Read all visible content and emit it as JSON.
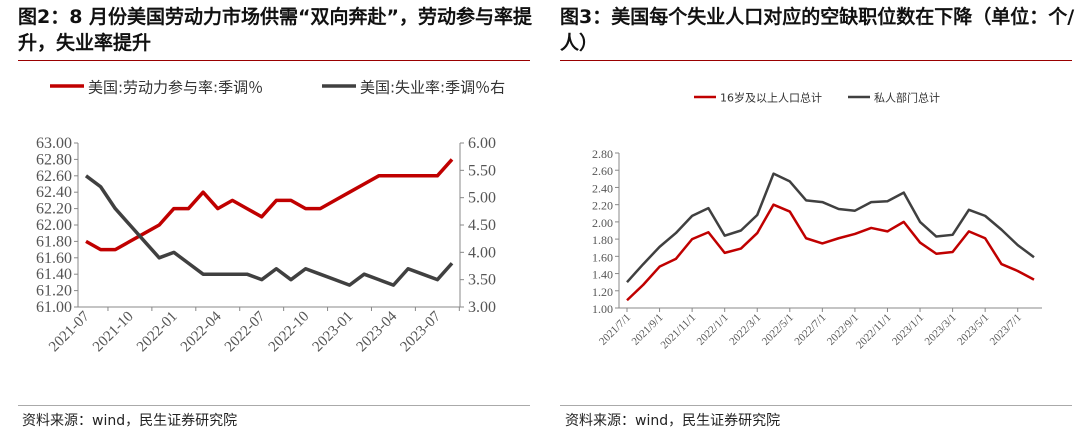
{
  "left": {
    "title": "图2：8 月份美国劳动力市场供需“双向奔赴”，劳动参与率提升，失业率提升",
    "source": "资料来源：wind，民生证券研究院"
  },
  "right": {
    "title": "图3：美国每个失业人口对应的空缺职位数在下降（单位：个/人）",
    "source": "资料来源：wind，民生证券研究院"
  },
  "colors": {
    "red": "#c00000",
    "gray": "#404040"
  },
  "chart_data": [
    {
      "type": "line",
      "title": "图2",
      "x_ticks": [
        "2021-07",
        "2021-10",
        "2022-01",
        "2022-04",
        "2022-07",
        "2022-10",
        "2023-01",
        "2023-04",
        "2023-07"
      ],
      "ylim": [
        61.0,
        63.0
      ],
      "y_ticks": [
        "61.00",
        "61.20",
        "61.40",
        "61.60",
        "61.80",
        "62.00",
        "62.20",
        "62.40",
        "62.60",
        "62.80",
        "63.00"
      ],
      "y2lim": [
        3.0,
        6.0
      ],
      "y2_ticks": [
        "3.00",
        "3.50",
        "4.00",
        "4.50",
        "5.00",
        "5.50",
        "6.00"
      ],
      "legend": "top",
      "series": [
        {
          "name": "美国:劳动力参与率:季调％",
          "axis": "left",
          "color": "#c00000",
          "values": [
            61.8,
            61.7,
            61.7,
            61.8,
            61.9,
            62.0,
            62.2,
            62.2,
            62.4,
            62.2,
            62.3,
            62.2,
            62.1,
            62.3,
            62.3,
            62.2,
            62.2,
            62.3,
            62.4,
            62.5,
            62.6,
            62.6,
            62.6,
            62.6,
            62.6,
            62.8
          ]
        },
        {
          "name": "美国:失业率:季调％右",
          "axis": "right",
          "color": "#404040",
          "values": [
            5.4,
            5.2,
            4.8,
            4.5,
            4.2,
            3.9,
            4.0,
            3.8,
            3.6,
            3.6,
            3.6,
            3.6,
            3.5,
            3.7,
            3.5,
            3.7,
            3.6,
            3.5,
            3.4,
            3.6,
            3.5,
            3.4,
            3.7,
            3.6,
            3.5,
            3.8
          ]
        }
      ]
    },
    {
      "type": "line",
      "title": "图3",
      "x_ticks": [
        "2021/7/1",
        "2021/9/1",
        "2021/11/1",
        "2022/1/1",
        "2022/3/1",
        "2022/5/1",
        "2022/7/1",
        "2022/9/1",
        "2022/11/1",
        "2023/1/1",
        "2023/3/1",
        "2023/5/1",
        "2023/7/1"
      ],
      "ylim": [
        1.0,
        2.8
      ],
      "y_ticks": [
        "1.00",
        "1.20",
        "1.40",
        "1.60",
        "1.80",
        "2.00",
        "2.20",
        "2.40",
        "2.60",
        "2.80"
      ],
      "legend": "top",
      "series": [
        {
          "name": "16岁及以上人口总计",
          "color": "#c00000",
          "values": [
            1.09,
            1.27,
            1.48,
            1.57,
            1.8,
            1.88,
            1.64,
            1.69,
            1.87,
            2.2,
            2.12,
            1.81,
            1.75,
            1.81,
            1.86,
            1.93,
            1.89,
            2.0,
            1.76,
            1.63,
            1.65,
            1.89,
            1.81,
            1.51,
            1.43,
            1.33
          ]
        },
        {
          "name": "私人部门总计",
          "color": "#404040",
          "values": [
            1.3,
            1.51,
            1.71,
            1.87,
            2.07,
            2.16,
            1.84,
            1.9,
            2.08,
            2.56,
            2.47,
            2.25,
            2.23,
            2.15,
            2.13,
            2.23,
            2.24,
            2.34,
            2.0,
            1.83,
            1.85,
            2.14,
            2.07,
            1.91,
            1.73,
            1.59
          ]
        }
      ]
    }
  ]
}
